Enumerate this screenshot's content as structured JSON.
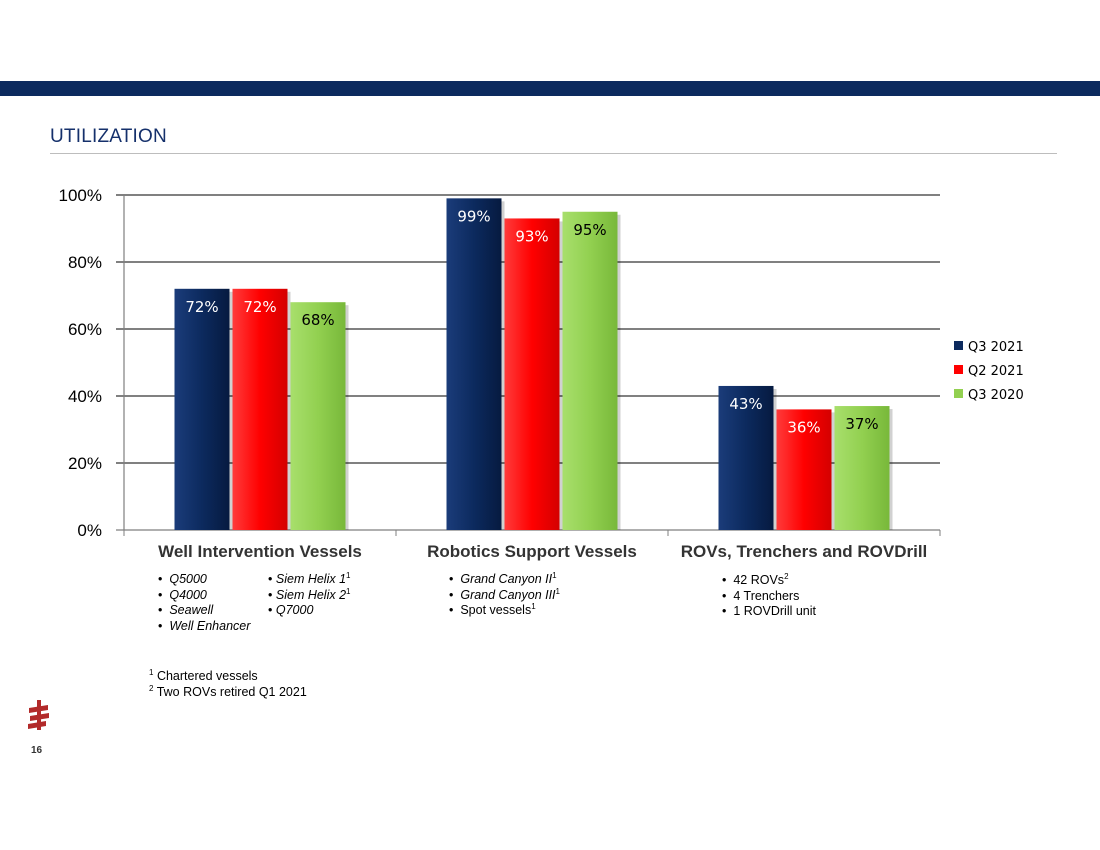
{
  "slide": {
    "title": "UTILIZATION",
    "page_number": "16"
  },
  "colors": {
    "top_bar": "#0c2a5e",
    "series": [
      "#0c2a5e",
      "#ff0000",
      "#92d050"
    ]
  },
  "chart_data": {
    "type": "bar",
    "categories": [
      "Well Intervention Vessels",
      "Robotics Support Vessels",
      "ROVs, Trenchers and ROVDrill"
    ],
    "series": [
      {
        "name": "Q3 2021",
        "values": [
          72,
          99,
          43
        ],
        "labels": [
          "72%",
          "99%",
          "43%"
        ]
      },
      {
        "name": "Q2 2021",
        "values": [
          72,
          93,
          36
        ],
        "labels": [
          "72%",
          "93%",
          "36%"
        ]
      },
      {
        "name": "Q3 2020",
        "values": [
          68,
          95,
          37
        ],
        "labels": [
          "68%",
          "95%",
          "37%"
        ]
      }
    ],
    "ylim": [
      0,
      100
    ],
    "yticks": [
      0,
      20,
      40,
      60,
      80,
      100
    ],
    "ytick_labels": [
      "0%",
      "20%",
      "40%",
      "60%",
      "80%",
      "100%"
    ],
    "grid": true,
    "legend_position": "right"
  },
  "notes": {
    "well_intervention": {
      "col1": [
        "Q5000",
        "Q4000",
        "Seawell",
        "Well Enhancer"
      ],
      "col2": [
        "Siem Helix 1",
        "Siem Helix 2",
        "Q7000"
      ],
      "col2_sup": [
        "1",
        "1",
        ""
      ]
    },
    "robotics": {
      "items": [
        "Grand Canyon II",
        "Grand Canyon III",
        "Spot vessels"
      ],
      "sups": [
        "1",
        "1",
        "1"
      ]
    },
    "rovs": {
      "items": [
        "42 ROVs",
        "4 Trenchers",
        "1 ROVDrill unit"
      ],
      "sups": [
        "2",
        "",
        ""
      ]
    }
  },
  "footnotes": [
    {
      "mark": "1",
      "text": "Chartered vessels"
    },
    {
      "mark": "2",
      "text": "Two ROVs retired Q1 2021"
    }
  ],
  "bullet": "•"
}
